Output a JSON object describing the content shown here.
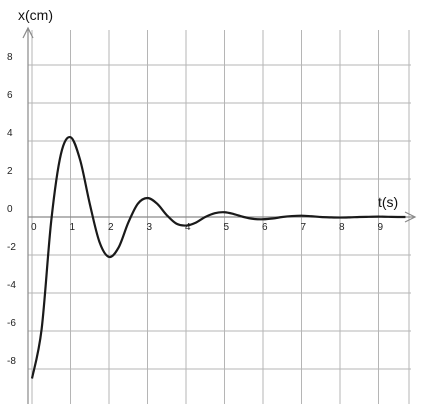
{
  "chart_data": {
    "type": "line",
    "xlabel": "t(s)",
    "ylabel": "x(cm)",
    "xlim": [
      -0.1,
      9.7
    ],
    "ylim": [
      -10,
      10
    ],
    "x_ticks": [
      0,
      1,
      2,
      3,
      4,
      5,
      6,
      7,
      8,
      9
    ],
    "x_tick_labels": [
      "0",
      "1",
      "2",
      "3",
      "4",
      "5",
      "6",
      "7",
      "8",
      "9"
    ],
    "y_ticks": [
      -8,
      -6,
      -4,
      -2,
      0,
      2,
      4,
      6,
      8
    ],
    "y_tick_labels": [
      "-8",
      "-6",
      "-4",
      "-2",
      "0",
      "2",
      "4",
      "6",
      "8"
    ],
    "grid": true,
    "colors": {
      "curve": "#1a1a1a",
      "grid": "#b5b5b5",
      "axis": "#8a8a8a"
    },
    "series": [
      {
        "x": [
          0,
          0.25,
          0.5,
          0.75,
          1.0,
          1.25,
          1.5,
          1.75,
          2.0,
          2.25,
          2.5,
          2.75,
          3.0,
          3.25,
          3.5,
          3.75,
          4.0,
          4.25,
          4.5,
          4.75,
          5.0,
          5.25,
          5.5,
          5.75,
          6.0,
          6.25,
          6.5,
          6.75,
          7.0,
          7.25,
          7.5,
          7.75,
          8.0,
          8.25,
          8.5,
          8.75,
          9.0,
          9.25,
          9.5,
          9.7
        ],
        "y": [
          -8.5,
          -5.9,
          -0.2,
          3.3,
          4.2,
          3.0,
          0.7,
          -1.3,
          -2.1,
          -1.6,
          -0.3,
          0.7,
          1.0,
          0.7,
          0.1,
          -0.35,
          -0.45,
          -0.3,
          0.0,
          0.2,
          0.25,
          0.15,
          0.0,
          -0.1,
          -0.12,
          -0.08,
          0.0,
          0.05,
          0.07,
          0.04,
          0.0,
          -0.02,
          -0.03,
          -0.02,
          0.0,
          0.01,
          0.02,
          0.01,
          0.0,
          0.0
        ]
      }
    ]
  }
}
